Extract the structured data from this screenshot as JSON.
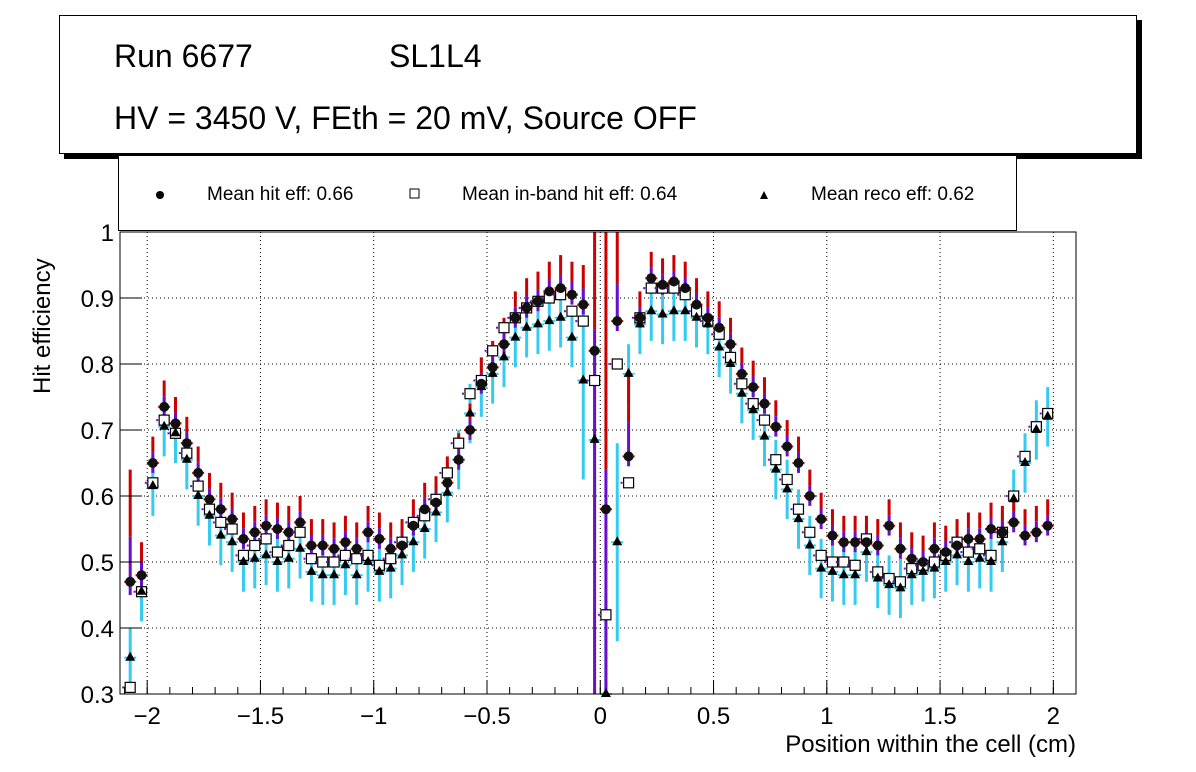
{
  "title": {
    "run": "Run 6677",
    "layer": "SL1L4",
    "conditions": "HV = 3450 V, FEth = 20 mV, Source OFF"
  },
  "legend": [
    {
      "marker": "filled-circle",
      "label": "Mean hit  eff: 0.66"
    },
    {
      "marker": "open-square",
      "label": "Mean in-band hit eff: 0.64"
    },
    {
      "marker": "filled-triangle",
      "label": "Mean reco eff: 0.62"
    }
  ],
  "colors": {
    "hit_err_up": "#cc0000",
    "hit_err_mid": "#6a0dcc",
    "reco_err": "#33ccf0",
    "marker": "#000000"
  },
  "chart_data": {
    "type": "scatter",
    "title": "Run 6677 SL1L4 — HV = 3450 V, FEth = 20 mV, Source OFF",
    "xlabel": "Position within the cell (cm)",
    "ylabel": "Hit efficiency",
    "xlim": [
      -2.12,
      2.1
    ],
    "ylim": [
      0.3,
      1.0
    ],
    "xticks": [
      -2,
      -1.5,
      -1,
      -0.5,
      0,
      0.5,
      1,
      1.5,
      2
    ],
    "xtick_labels": [
      "−2",
      "−1.5",
      "−1",
      "−0.5",
      "0",
      "0.5",
      "1",
      "1.5",
      "2"
    ],
    "yticks": [
      0.3,
      0.4,
      0.5,
      0.6,
      0.7,
      0.8,
      0.9,
      1
    ],
    "ytick_labels": [
      "0.3",
      "0.4",
      "0.5",
      "0.6",
      "0.7",
      "0.8",
      "0.9",
      "1"
    ],
    "grid": true,
    "legend_position": "top",
    "x": [
      -2.075,
      -2.025,
      -1.975,
      -1.925,
      -1.875,
      -1.825,
      -1.775,
      -1.725,
      -1.675,
      -1.625,
      -1.575,
      -1.525,
      -1.475,
      -1.425,
      -1.375,
      -1.325,
      -1.275,
      -1.225,
      -1.175,
      -1.125,
      -1.075,
      -1.025,
      -0.975,
      -0.925,
      -0.875,
      -0.825,
      -0.775,
      -0.725,
      -0.675,
      -0.625,
      -0.575,
      -0.525,
      -0.475,
      -0.425,
      -0.375,
      -0.325,
      -0.275,
      -0.225,
      -0.175,
      -0.125,
      -0.075,
      -0.025,
      0.025,
      0.075,
      0.125,
      0.175,
      0.225,
      0.275,
      0.325,
      0.375,
      0.425,
      0.475,
      0.525,
      0.575,
      0.625,
      0.675,
      0.725,
      0.775,
      0.825,
      0.875,
      0.925,
      0.975,
      1.025,
      1.075,
      1.125,
      1.175,
      1.225,
      1.275,
      1.325,
      1.375,
      1.425,
      1.475,
      1.525,
      1.575,
      1.625,
      1.675,
      1.725,
      1.775,
      1.825,
      1.875,
      1.925,
      1.975
    ],
    "series": [
      {
        "name": "Mean hit  eff: 0.66",
        "marker": "filled-circle",
        "values": [
          0.47,
          0.48,
          0.65,
          0.735,
          0.71,
          0.68,
          0.635,
          0.595,
          0.58,
          0.565,
          0.535,
          0.545,
          0.555,
          0.55,
          0.545,
          0.56,
          0.525,
          0.525,
          0.52,
          0.53,
          0.52,
          0.545,
          0.535,
          0.52,
          0.525,
          0.555,
          0.58,
          0.59,
          0.62,
          0.655,
          0.7,
          0.77,
          0.795,
          0.83,
          0.87,
          0.885,
          0.895,
          0.91,
          0.915,
          0.905,
          0.89,
          0.82,
          0.58,
          0.865,
          0.66,
          0.87,
          0.93,
          0.92,
          0.925,
          0.915,
          0.89,
          0.87,
          0.855,
          0.83,
          0.785,
          0.765,
          0.74,
          0.705,
          0.675,
          0.65,
          0.6,
          0.565,
          0.54,
          0.53,
          0.53,
          0.53,
          0.525,
          0.555,
          0.52,
          0.505,
          0.5,
          0.52,
          0.515,
          0.525,
          0.535,
          0.535,
          0.55,
          0.545,
          0.56,
          0.54,
          0.545,
          0.555
        ],
        "err_low": [
          0.02,
          0.02,
          0.015,
          0.015,
          0.015,
          0.015,
          0.015,
          0.015,
          0.015,
          0.015,
          0.015,
          0.015,
          0.015,
          0.015,
          0.015,
          0.015,
          0.015,
          0.015,
          0.015,
          0.015,
          0.015,
          0.015,
          0.015,
          0.015,
          0.015,
          0.015,
          0.015,
          0.015,
          0.015,
          0.015,
          0.015,
          0.015,
          0.015,
          0.015,
          0.015,
          0.015,
          0.015,
          0.015,
          0.015,
          0.015,
          0.015,
          0.015,
          0.015,
          0.015,
          0.015,
          0.015,
          0.015,
          0.015,
          0.015,
          0.015,
          0.015,
          0.015,
          0.015,
          0.015,
          0.015,
          0.015,
          0.015,
          0.015,
          0.015,
          0.015,
          0.015,
          0.015,
          0.015,
          0.015,
          0.015,
          0.015,
          0.015,
          0.015,
          0.015,
          0.015,
          0.015,
          0.015,
          0.015,
          0.015,
          0.015,
          0.015,
          0.015,
          0.015,
          0.015,
          0.015,
          0.015,
          0.015
        ],
        "err_high": [
          0.17,
          0.05,
          0.04,
          0.04,
          0.04,
          0.04,
          0.04,
          0.04,
          0.04,
          0.04,
          0.04,
          0.04,
          0.04,
          0.04,
          0.04,
          0.04,
          0.04,
          0.04,
          0.04,
          0.04,
          0.04,
          0.04,
          0.04,
          0.04,
          0.04,
          0.04,
          0.04,
          0.04,
          0.04,
          0.04,
          0.04,
          0.04,
          0.04,
          0.04,
          0.04,
          0.045,
          0.045,
          0.045,
          0.05,
          0.05,
          0.06,
          0.08,
          0.15,
          0.14,
          0.13,
          0.04,
          0.04,
          0.04,
          0.04,
          0.04,
          0.04,
          0.04,
          0.04,
          0.04,
          0.04,
          0.04,
          0.04,
          0.04,
          0.04,
          0.04,
          0.04,
          0.04,
          0.04,
          0.04,
          0.04,
          0.04,
          0.04,
          0.04,
          0.04,
          0.04,
          0.04,
          0.04,
          0.04,
          0.04,
          0.04,
          0.04,
          0.04,
          0.04,
          0.04,
          0.04,
          0.04,
          0.04
        ]
      },
      {
        "name": "Mean in-band hit eff: 0.64",
        "marker": "open-square",
        "values": [
          0.31,
          0.455,
          0.62,
          0.715,
          0.695,
          0.665,
          0.615,
          0.58,
          0.56,
          0.55,
          0.51,
          0.525,
          0.535,
          0.515,
          0.525,
          0.545,
          0.505,
          0.5,
          0.5,
          0.51,
          0.505,
          0.51,
          0.495,
          0.505,
          0.53,
          0.56,
          0.57,
          0.595,
          0.635,
          0.68,
          0.755,
          0.775,
          0.82,
          0.855,
          0.87,
          0.885,
          0.895,
          0.9,
          0.905,
          0.88,
          0.865,
          0.775,
          0.42,
          0.8,
          0.62,
          0.87,
          0.915,
          0.915,
          0.915,
          0.905,
          0.88,
          0.865,
          0.845,
          0.81,
          0.77,
          0.74,
          0.715,
          0.655,
          0.625,
          0.58,
          0.545,
          0.51,
          0.5,
          0.5,
          0.495,
          0.535,
          0.485,
          0.475,
          0.47,
          0.49,
          0.495,
          0.5,
          0.51,
          0.53,
          0.515,
          0.52,
          0.51,
          0.545,
          0.6,
          0.66,
          0.705,
          0.725
        ]
      },
      {
        "name": "Mean reco eff: 0.62",
        "marker": "filled-triangle",
        "values": [
          0.355,
          0.455,
          0.615,
          0.705,
          0.695,
          0.655,
          0.6,
          0.57,
          0.54,
          0.53,
          0.5,
          0.505,
          0.51,
          0.5,
          0.505,
          0.52,
          0.485,
          0.48,
          0.48,
          0.495,
          0.48,
          0.5,
          0.485,
          0.49,
          0.51,
          0.53,
          0.55,
          0.575,
          0.605,
          0.655,
          0.725,
          0.765,
          0.785,
          0.81,
          0.84,
          0.855,
          0.86,
          0.865,
          0.87,
          0.84,
          0.775,
          0.685,
          0.3,
          0.53,
          0.785,
          0.86,
          0.88,
          0.875,
          0.88,
          0.88,
          0.87,
          0.86,
          0.825,
          0.8,
          0.755,
          0.73,
          0.69,
          0.64,
          0.61,
          0.565,
          0.525,
          0.49,
          0.485,
          0.48,
          0.48,
          0.515,
          0.475,
          0.465,
          0.46,
          0.48,
          0.485,
          0.49,
          0.5,
          0.51,
          0.5,
          0.505,
          0.5,
          0.53,
          0.595,
          0.65,
          0.7,
          0.72
        ]
      }
    ]
  }
}
